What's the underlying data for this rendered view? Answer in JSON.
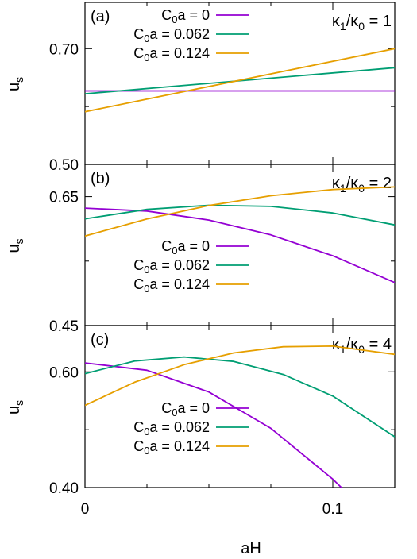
{
  "chart_data": {
    "type": "line",
    "xlabel": "aH",
    "ylabel": "u",
    "ylabel_sub": "s",
    "xlim": [
      0,
      0.125
    ],
    "x_ticks": [
      {
        "v": 0,
        "label": "0"
      },
      {
        "v": 0.1,
        "label": "0.1"
      }
    ],
    "x_minor": [
      0.025,
      0.05,
      0.075
    ],
    "colors": [
      "#9400d3",
      "#009e73",
      "#e69f00"
    ],
    "panels": [
      {
        "tag": "(a)",
        "ratio": {
          "k1": "κ",
          "s1": "1",
          "slash": "/",
          "k0": "κ",
          "s0": "0",
          "eq": " = 1"
        },
        "legend_pos": "top",
        "ylim": [
          0.5,
          0.78
        ],
        "y_ticks": [
          {
            "v": 0.5,
            "label": "0.50"
          },
          {
            "v": 0.7,
            "label": "0.70"
          }
        ],
        "y_minor": [
          0.6
        ],
        "series": [
          {
            "name": {
              "C": "C",
              "sub": "0",
              "rest": "a = 0"
            },
            "x": [
              0,
              0.125
            ],
            "y": [
              0.627,
              0.627
            ]
          },
          {
            "name": {
              "C": "C",
              "sub": "0",
              "rest": "a = 0.062"
            },
            "x": [
              0,
              0.125
            ],
            "y": [
              0.622,
              0.667
            ]
          },
          {
            "name": {
              "C": "C",
              "sub": "0",
              "rest": "a = 0.124"
            },
            "x": [
              0,
              0.125
            ],
            "y": [
              0.591,
              0.7
            ]
          }
        ]
      },
      {
        "tag": "(b)",
        "ratio": {
          "k1": "κ",
          "s1": "1",
          "slash": "/",
          "k0": "κ",
          "s0": "0",
          "eq": " = 2"
        },
        "legend_pos": "bottom",
        "ylim": [
          0.45,
          0.7
        ],
        "y_ticks": [
          {
            "v": 0.45,
            "label": "0.45"
          },
          {
            "v": 0.65,
            "label": "0.65"
          }
        ],
        "y_minor": [
          0.55
        ],
        "series": [
          {
            "name": {
              "C": "C",
              "sub": "0",
              "rest": "a = 0"
            },
            "x": [
              0,
              0.025,
              0.05,
              0.075,
              0.1,
              0.125
            ],
            "y": [
              0.6322,
              0.6276,
              0.6137,
              0.5906,
              0.5583,
              0.5167
            ]
          },
          {
            "name": {
              "C": "C",
              "sub": "0",
              "rest": "a = 0.062"
            },
            "x": [
              0,
              0.025,
              0.05,
              0.075,
              0.1,
              0.125
            ],
            "y": [
              0.6155,
              0.6302,
              0.6366,
              0.6348,
              0.6246,
              0.6062
            ]
          },
          {
            "name": {
              "C": "C",
              "sub": "0",
              "rest": "a = 0.124"
            },
            "x": [
              0,
              0.025,
              0.05,
              0.075,
              0.1,
              0.125
            ],
            "y": [
              0.5889,
              0.6154,
              0.6362,
              0.6514,
              0.661,
              0.665
            ]
          }
        ]
      },
      {
        "tag": "(c)",
        "ratio": {
          "k1": "κ",
          "s1": "1",
          "slash": "/",
          "k0": "κ",
          "s0": "0",
          "eq": " = 4"
        },
        "legend_pos": "bottom",
        "ylim": [
          0.4,
          0.68
        ],
        "y_ticks": [
          {
            "v": 0.4,
            "label": "0.40"
          },
          {
            "v": 0.6,
            "label": "0.60"
          }
        ],
        "y_minor": [
          0.5
        ],
        "series": [
          {
            "name": {
              "C": "C",
              "sub": "0",
              "rest": "a = 0"
            },
            "x": [
              0,
              0.025,
              0.05,
              0.075,
              0.1,
              0.105
            ],
            "y": [
              0.6153,
              0.6027,
              0.5651,
              0.5024,
              0.4146,
              0.3935
            ]
          },
          {
            "name": {
              "C": "C",
              "sub": "0",
              "rest": "a = 0.062"
            },
            "x": [
              0,
              0.02,
              0.04,
              0.06,
              0.08,
              0.1,
              0.125
            ],
            "y": [
              0.5968,
              0.6186,
              0.6256,
              0.6179,
              0.5954,
              0.5581,
              0.4877
            ]
          },
          {
            "name": {
              "C": "C",
              "sub": "0",
              "rest": "a = 0.124"
            },
            "x": [
              0,
              0.02,
              0.04,
              0.06,
              0.08,
              0.1,
              0.125
            ],
            "y": [
              0.542,
              0.582,
              0.6123,
              0.6327,
              0.6434,
              0.6444,
              0.6302
            ]
          }
        ]
      }
    ]
  }
}
